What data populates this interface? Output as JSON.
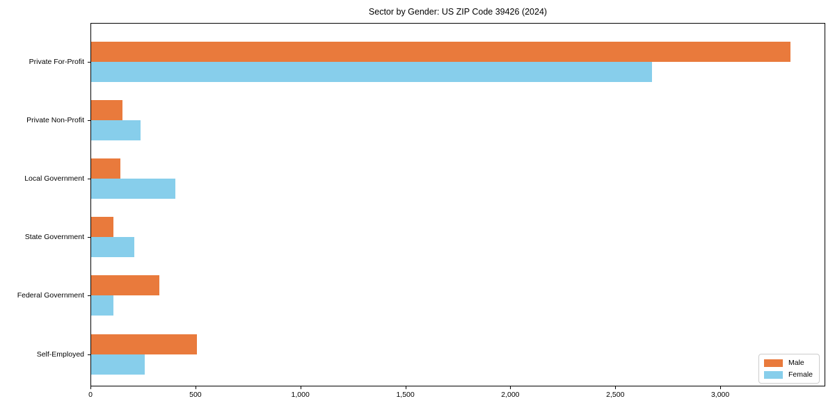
{
  "chart_data": {
    "type": "bar",
    "orientation": "horizontal",
    "title": "Sector by Gender: US ZIP Code 39426 (2024)",
    "categories": [
      "Private For-Profit",
      "Private Non-Profit",
      "Local Government",
      "State Government",
      "Federal Government",
      "Self-Employed"
    ],
    "series": [
      {
        "name": "Male",
        "color": "#E97A3C",
        "values": [
          3330,
          150,
          140,
          105,
          325,
          505
        ]
      },
      {
        "name": "Female",
        "color": "#87CEEB",
        "values": [
          2670,
          235,
          400,
          205,
          105,
          255
        ]
      }
    ],
    "xlabel": "",
    "ylabel": "",
    "xlim": [
      0,
      3500
    ],
    "xticks": [
      0,
      500,
      1000,
      1500,
      2000,
      2500,
      3000
    ],
    "xtick_labels": [
      "0",
      "500",
      "1,000",
      "1,500",
      "2,000",
      "2,500",
      "3,000"
    ],
    "grid": false,
    "legend": {
      "position": "lower right"
    },
    "colors": {
      "male": "#E97A3C",
      "female": "#87CEEB",
      "frame": "#000000",
      "background": "#ffffff"
    }
  }
}
